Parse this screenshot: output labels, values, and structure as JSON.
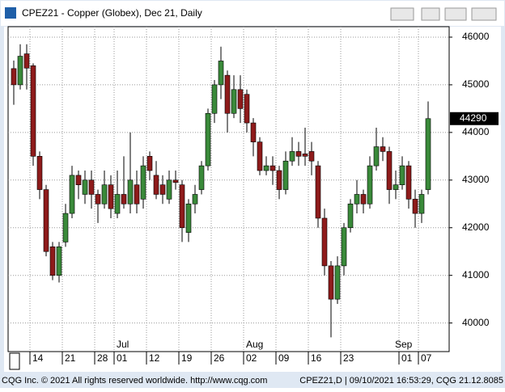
{
  "window_title": "CPEZ21 - Copper (Globex), Dec 21, Daily",
  "footer": {
    "left": "CQG Inc. © 2021 All rights reserved worldwide. http://www.cqg.com",
    "right": "CPEZ21,D | 09/10/2021 16:53:29, CQG 21.12.8085"
  },
  "chart_data": {
    "type": "candlestick",
    "categories": [
      null,
      null,
      "14",
      null,
      null,
      null,
      null,
      "21",
      null,
      null,
      null,
      null,
      "28",
      null,
      null,
      "01",
      null,
      null,
      null,
      null,
      "12",
      null,
      null,
      null,
      null,
      "19",
      null,
      null,
      null,
      null,
      "26",
      null,
      null,
      null,
      null,
      "02",
      null,
      null,
      null,
      null,
      "09",
      null,
      null,
      null,
      null,
      "16",
      null,
      null,
      null,
      null,
      "23",
      null,
      null,
      null,
      null,
      null,
      null,
      null,
      null,
      "01",
      null,
      null,
      "07",
      null,
      null,
      null
    ],
    "months": [
      null,
      null,
      null,
      null,
      null,
      null,
      null,
      null,
      null,
      null,
      null,
      null,
      null,
      null,
      null,
      "Jul",
      null,
      null,
      null,
      null,
      null,
      null,
      null,
      null,
      null,
      null,
      null,
      null,
      null,
      null,
      null,
      null,
      null,
      null,
      null,
      "Aug",
      null,
      null,
      null,
      null,
      null,
      null,
      null,
      null,
      null,
      null,
      null,
      null,
      null,
      null,
      null,
      null,
      null,
      null,
      null,
      null,
      null,
      null,
      "Sep",
      null,
      null,
      null,
      null,
      null,
      null
    ],
    "open": [
      45340,
      45000,
      45650,
      45400,
      43500,
      42800,
      41600,
      41000,
      41700,
      42300,
      43100,
      42700,
      43000,
      42700,
      42500,
      42900,
      42300,
      42700,
      42500,
      42900,
      42600,
      43500,
      43100,
      42900,
      42600,
      43000,
      42900,
      41900,
      42500,
      42800,
      43300,
      44400,
      45000,
      45200,
      44400,
      44900,
      44800,
      44200,
      43800,
      43200,
      43300,
      43200,
      42800,
      43400,
      43600,
      43550,
      43600,
      43300,
      42200,
      41200,
      40500,
      41200,
      42000,
      42500,
      42700,
      42500,
      43300,
      43700,
      43600,
      42800,
      42900,
      43300,
      42600,
      42300,
      42800
    ],
    "high": [
      45510,
      45850,
      45850,
      45450,
      43600,
      42900,
      41700,
      41700,
      42500,
      43300,
      43200,
      43200,
      43200,
      42800,
      43200,
      43100,
      43200,
      43500,
      44000,
      43200,
      43500,
      43600,
      43400,
      43100,
      43200,
      43200,
      43000,
      42600,
      42900,
      43400,
      44500,
      45100,
      45800,
      45300,
      45200,
      45200,
      44900,
      44300,
      43900,
      43500,
      43500,
      43300,
      43600,
      43900,
      43800,
      44100,
      43800,
      43400,
      42400,
      41300,
      41400,
      42100,
      42600,
      43000,
      42800,
      43500,
      44100,
      43900,
      43700,
      43200,
      43500,
      43400,
      42800,
      42800,
      44650
    ],
    "low": [
      44580,
      44900,
      44900,
      43300,
      42600,
      41400,
      40900,
      40850,
      41600,
      42200,
      42600,
      42500,
      42400,
      42100,
      42400,
      42200,
      42200,
      42400,
      42300,
      42300,
      42400,
      43000,
      42600,
      42500,
      42500,
      42800,
      41700,
      41700,
      42300,
      42700,
      43200,
      44200,
      44700,
      44000,
      44300,
      44200,
      44000,
      43500,
      43100,
      43100,
      42900,
      42600,
      42700,
      43300,
      43300,
      43300,
      43100,
      42000,
      41000,
      39700,
      40400,
      41000,
      41900,
      42300,
      42300,
      42400,
      43200,
      43400,
      42500,
      42600,
      42800,
      42400,
      42000,
      42100,
      42700
    ],
    "close": [
      45000,
      45600,
      45350,
      43500,
      42800,
      41500,
      41000,
      41600,
      42300,
      43100,
      42900,
      43000,
      42700,
      42500,
      42900,
      42400,
      42700,
      42500,
      43000,
      42500,
      43300,
      43200,
      42700,
      42700,
      43000,
      42950,
      42000,
      42500,
      42700,
      43300,
      44400,
      45000,
      45500,
      44400,
      44900,
      44500,
      44200,
      43800,
      43200,
      43300,
      43200,
      42800,
      43400,
      43600,
      43500,
      43500,
      43400,
      42200,
      41200,
      40500,
      41200,
      42000,
      42500,
      42700,
      42500,
      43300,
      43700,
      43600,
      42800,
      42900,
      43300,
      42600,
      42300,
      42700,
      44290
    ],
    "up_color": "#3a8a3a",
    "down_color": "#8e1b1b",
    "ylim": [
      39400,
      46220
    ],
    "yticks": [
      40000,
      41000,
      42000,
      43000,
      44000,
      45000,
      46000
    ],
    "grid": true
  }
}
